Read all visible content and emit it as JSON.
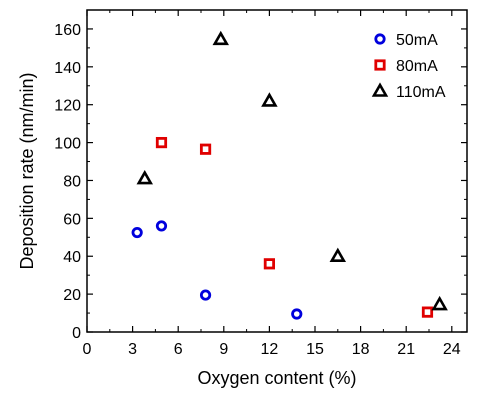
{
  "chart_data": {
    "type": "scatter",
    "xlabel": "Oxygen content (%)",
    "ylabel": "Deposition rate (nm/min)",
    "xlim": [
      0,
      25
    ],
    "ylim": [
      0,
      170
    ],
    "xticks": [
      0,
      3,
      6,
      9,
      12,
      15,
      18,
      21,
      24
    ],
    "yticks": [
      0,
      20,
      40,
      60,
      80,
      100,
      120,
      140,
      160
    ],
    "grid": false,
    "legend_position": "top-right",
    "series": [
      {
        "name": "50mA",
        "marker": "circle",
        "color": "#0000dd",
        "points": [
          [
            3.3,
            52.5
          ],
          [
            4.9,
            56
          ],
          [
            7.8,
            19.5
          ],
          [
            13.8,
            9.5
          ]
        ]
      },
      {
        "name": "80mA",
        "marker": "square",
        "color": "#e00000",
        "points": [
          [
            4.9,
            100
          ],
          [
            7.8,
            96.5
          ],
          [
            12.0,
            36
          ],
          [
            22.4,
            10.5
          ]
        ]
      },
      {
        "name": "110mA",
        "marker": "triangle",
        "color": "#000000",
        "points": [
          [
            3.8,
            81
          ],
          [
            8.8,
            154.5
          ],
          [
            12.0,
            122
          ],
          [
            16.5,
            40
          ],
          [
            23.2,
            14.5
          ]
        ]
      }
    ]
  }
}
